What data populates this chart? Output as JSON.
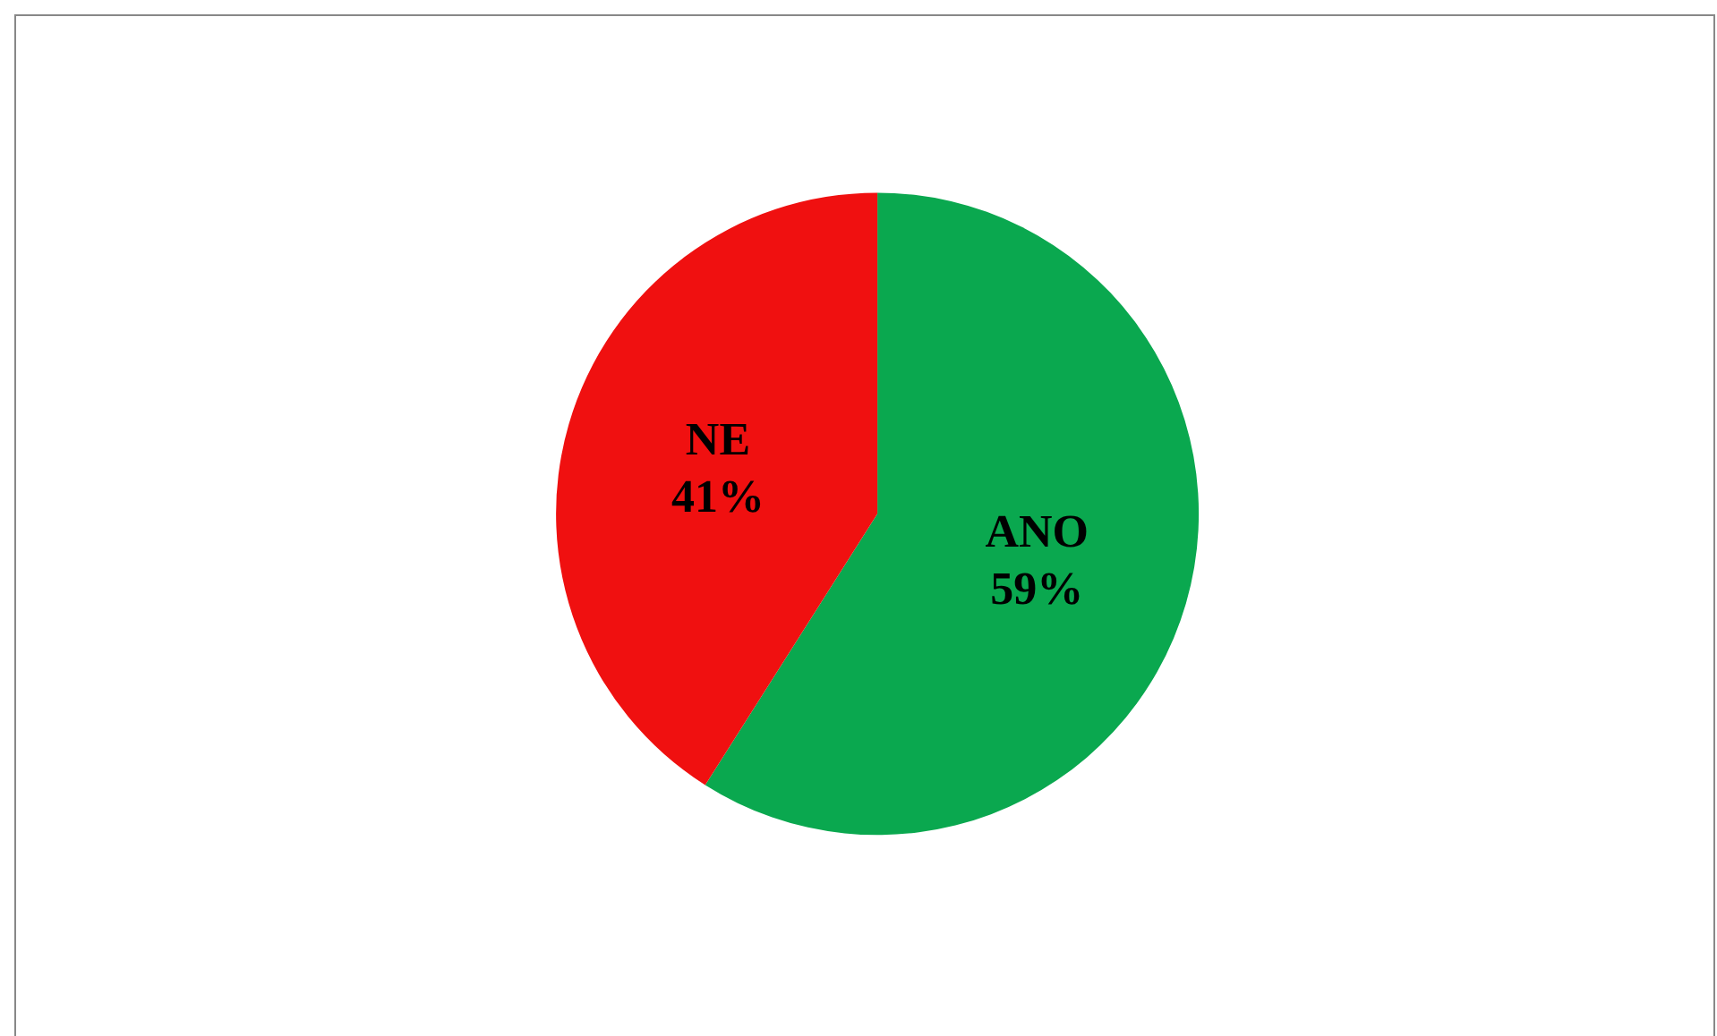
{
  "chart_data": {
    "type": "pie",
    "categories": [
      "ANO",
      "NE"
    ],
    "values": [
      59,
      41
    ],
    "colors": [
      "#0aa84f",
      "#f01010"
    ],
    "value_labels": [
      "59%",
      "41%"
    ],
    "legend": false
  }
}
